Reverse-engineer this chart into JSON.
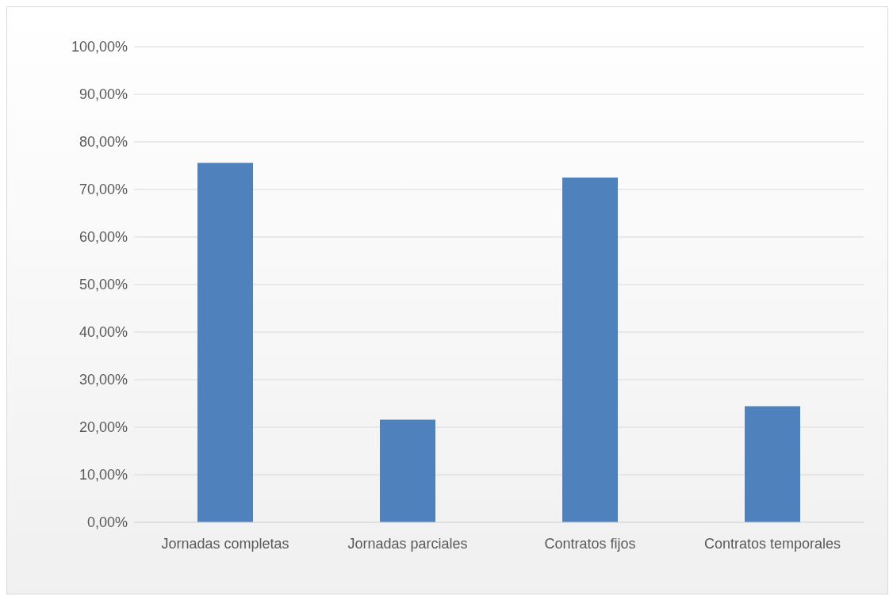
{
  "chart_data": {
    "type": "bar",
    "categories": [
      "Jornadas completas",
      "Jornadas parciales",
      "Contratos fijos",
      "Contratos temporales"
    ],
    "values": [
      75.6,
      21.6,
      72.5,
      24.4
    ],
    "color": "#4f81bd",
    "ylim": [
      0,
      100
    ],
    "yticks": [
      {
        "value": 0,
        "label": "0,00%"
      },
      {
        "value": 10,
        "label": "10,00%"
      },
      {
        "value": 20,
        "label": "20,00%"
      },
      {
        "value": 30,
        "label": "30,00%"
      },
      {
        "value": 40,
        "label": "40,00%"
      },
      {
        "value": 50,
        "label": "50,00%"
      },
      {
        "value": 60,
        "label": "60,00%"
      },
      {
        "value": 70,
        "label": "70,00%"
      },
      {
        "value": 80,
        "label": "80,00%"
      },
      {
        "value": 90,
        "label": "90,00%"
      },
      {
        "value": 100,
        "label": "100,00%"
      }
    ],
    "grid": "y",
    "legend": false
  }
}
